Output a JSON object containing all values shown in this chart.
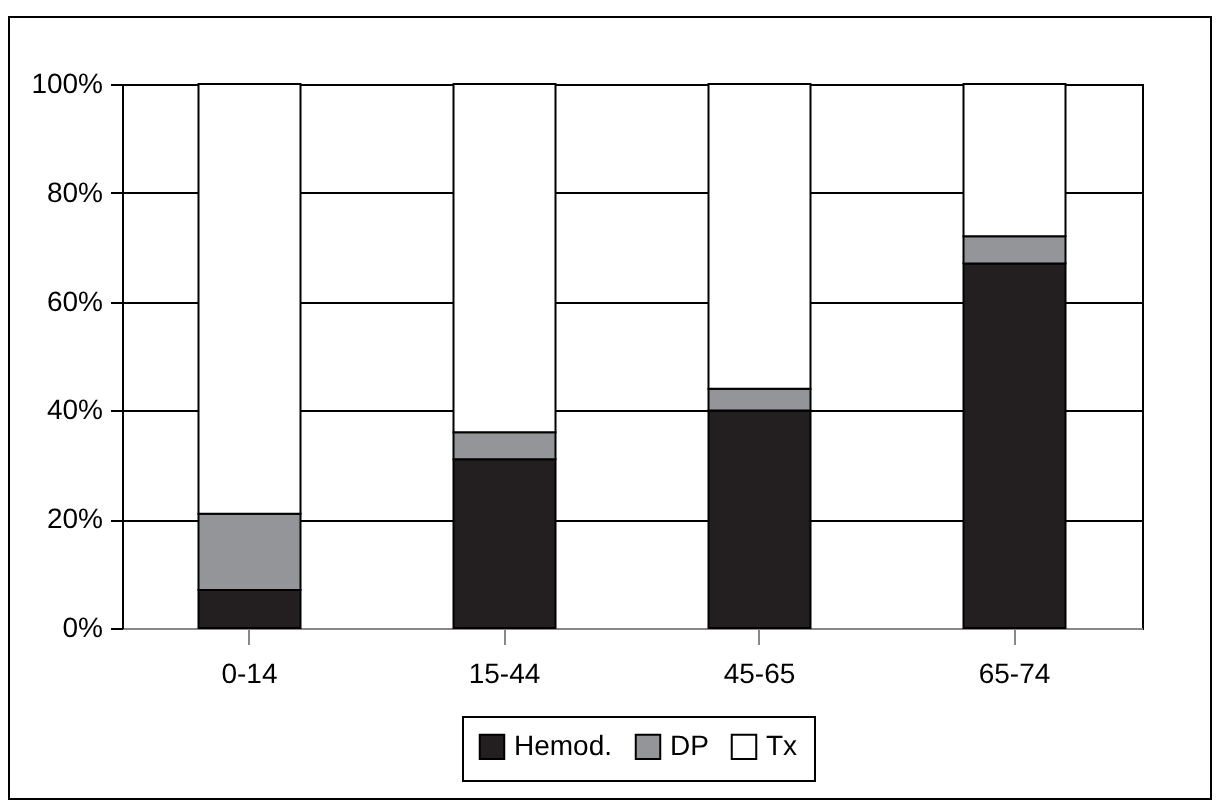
{
  "chart_data": {
    "type": "bar",
    "stacked": true,
    "categories": [
      "0-14",
      "15-44",
      "45-65",
      "65-74"
    ],
    "series": [
      {
        "name": "Hemod.",
        "color": "#231f20",
        "values": [
          7,
          31,
          40,
          67
        ]
      },
      {
        "name": "DP",
        "color": "#939598",
        "values": [
          14,
          5,
          4,
          5
        ]
      },
      {
        "name": "Tx",
        "color": "#ffffff",
        "values": [
          79,
          64,
          56,
          28
        ]
      }
    ],
    "ylim": [
      0,
      100
    ],
    "yticks": [
      {
        "value": 0,
        "label": "0%"
      },
      {
        "value": 20,
        "label": "20%"
      },
      {
        "value": 40,
        "label": "40%"
      },
      {
        "value": 60,
        "label": "60%"
      },
      {
        "value": 80,
        "label": "80%"
      },
      {
        "value": 100,
        "label": "100%"
      }
    ],
    "grid": "y",
    "legend": "bottom"
  }
}
